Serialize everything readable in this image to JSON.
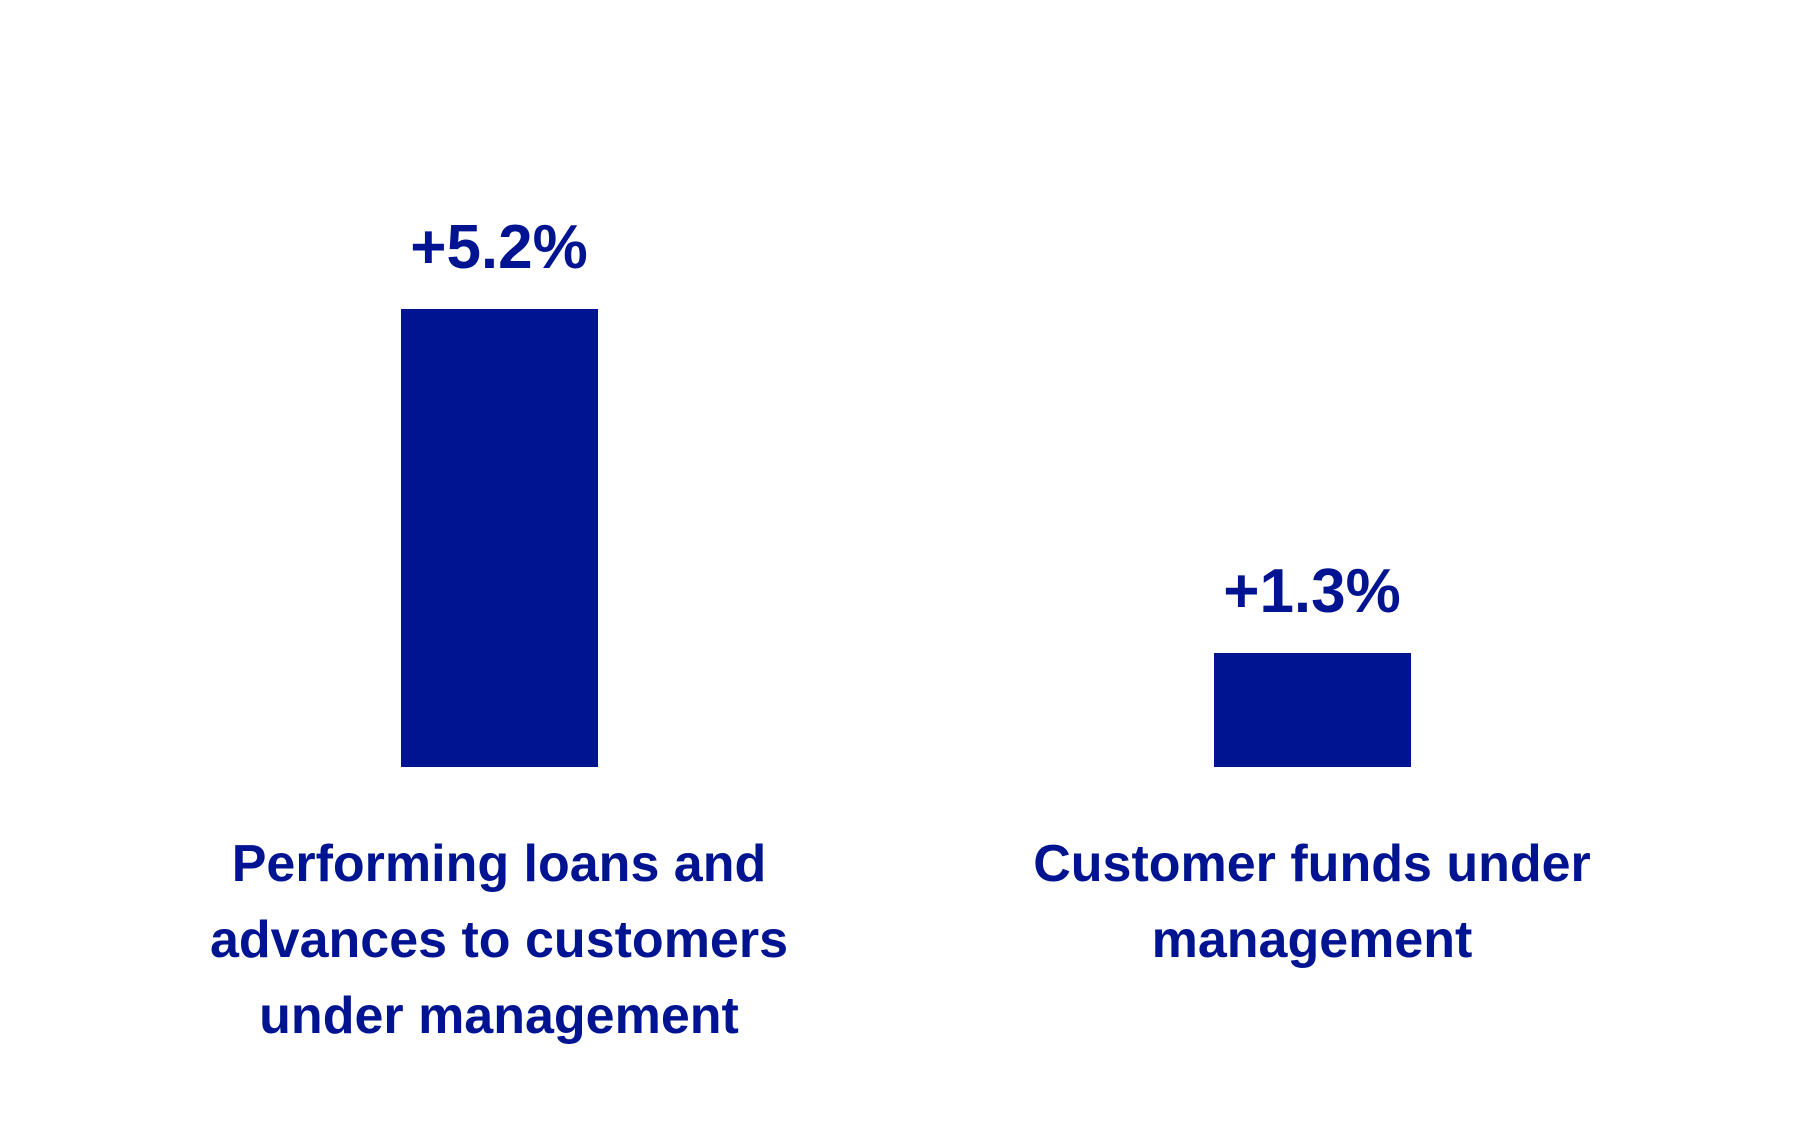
{
  "chart_data": {
    "type": "bar",
    "categories": [
      "Performing loans and advances to customers under management",
      "Customer funds under management"
    ],
    "values": [
      5.2,
      1.3
    ],
    "value_labels": [
      "+5.2%",
      "+1.3%"
    ],
    "color": "#001391"
  }
}
